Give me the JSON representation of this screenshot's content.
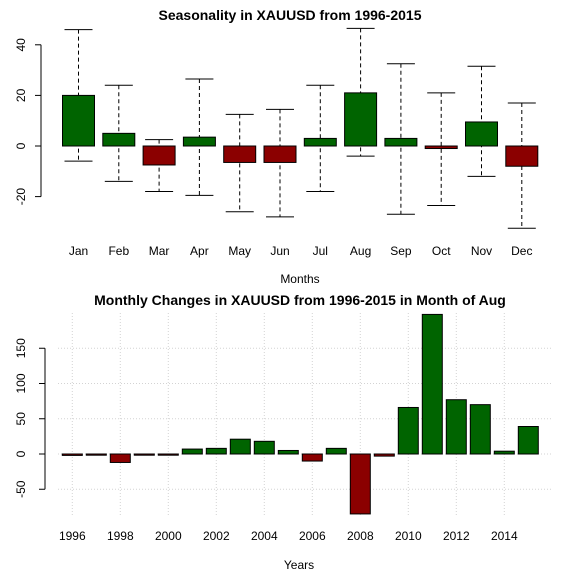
{
  "colors": {
    "positive": "#006400",
    "negative": "#8b0000",
    "edge": "#000000",
    "grid": "#d3d3d3"
  },
  "chart_data": [
    {
      "type": "bar",
      "subtype": "boxplot-style seasonality",
      "title": "Seasonality in XAUUSD from 1996-2015",
      "xlabel": "Months",
      "ylabel": "",
      "ylim": [
        -33,
        47
      ],
      "categories": [
        "Jan",
        "Feb",
        "Mar",
        "Apr",
        "May",
        "Jun",
        "Jul",
        "Aug",
        "Sep",
        "Oct",
        "Nov",
        "Dec"
      ],
      "values": [
        20,
        5,
        -7.5,
        3.5,
        -6.5,
        -6.5,
        3,
        21,
        3,
        -1,
        9.5,
        -8
      ],
      "whisker_high": [
        46,
        24,
        2.5,
        26.5,
        12.5,
        14.5,
        24,
        46.5,
        32.5,
        21,
        31.5,
        17
      ],
      "whisker_low": [
        -6,
        -14,
        -18,
        -19.5,
        -26,
        -28,
        -18,
        -4,
        -27,
        -23.5,
        -12,
        -32.5
      ],
      "yticks": [
        -20,
        0,
        20,
        40
      ],
      "grid": false
    },
    {
      "type": "bar",
      "title": "Monthly Changes in XAUUSD from 1996-2015 in Month of Aug",
      "xlabel": "Years",
      "ylabel": "",
      "ylim": [
        -85,
        200
      ],
      "categories": [
        "1996",
        "1997",
        "1998",
        "1999",
        "2000",
        "2001",
        "2002",
        "2003",
        "2004",
        "2005",
        "2006",
        "2007",
        "2008",
        "2009",
        "2010",
        "2011",
        "2012",
        "2013",
        "2014",
        "2015"
      ],
      "values": [
        -2,
        -1,
        -12,
        -1,
        -0.5,
        7,
        8,
        21,
        18,
        5,
        -10,
        8,
        -85,
        -3,
        66,
        198,
        77,
        70,
        4,
        39
      ],
      "xtick_labels": [
        "1996",
        "1998",
        "2000",
        "2002",
        "2004",
        "2006",
        "2008",
        "2010",
        "2012",
        "2014"
      ],
      "yticks": [
        -50,
        0,
        50,
        100,
        150
      ],
      "grid": true
    }
  ]
}
